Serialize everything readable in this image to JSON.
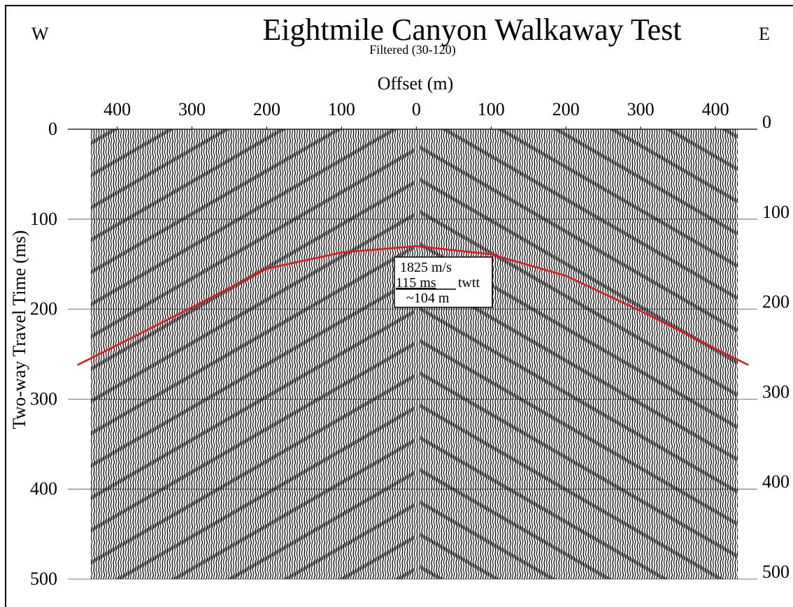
{
  "chart_data": {
    "type": "line",
    "title": "Eightmile Canyon Walkaway Test",
    "subtitle": "Filtered (30-120)",
    "left_label": "W",
    "right_label": "E",
    "x_label": "Offset (m)",
    "y_label": "Two-way Travel Time (ms)",
    "annotations": [
      "1825 m/s",
      "115 ms",
      "twtt",
      "~104 m"
    ],
    "x": [
      -453,
      -400,
      -300,
      -200,
      -100,
      0,
      100,
      200,
      300,
      400,
      444
    ],
    "values": [
      262,
      240,
      198,
      155,
      137,
      130,
      139,
      163,
      202,
      244,
      262
    ],
    "color": "#e8141c",
    "xlim": [
      -466,
      456
    ],
    "ylim": [
      0,
      500
    ],
    "y_inverted": true,
    "xticks": [
      {
        "value": -400,
        "label": "400"
      },
      {
        "value": -300,
        "label": "300"
      },
      {
        "value": -200,
        "label": "200"
      },
      {
        "value": -100,
        "label": "100"
      },
      0,
      100,
      200,
      300,
      400
    ],
    "yticks": [
      0,
      100,
      200,
      300,
      400,
      500
    ],
    "grid": true
  }
}
